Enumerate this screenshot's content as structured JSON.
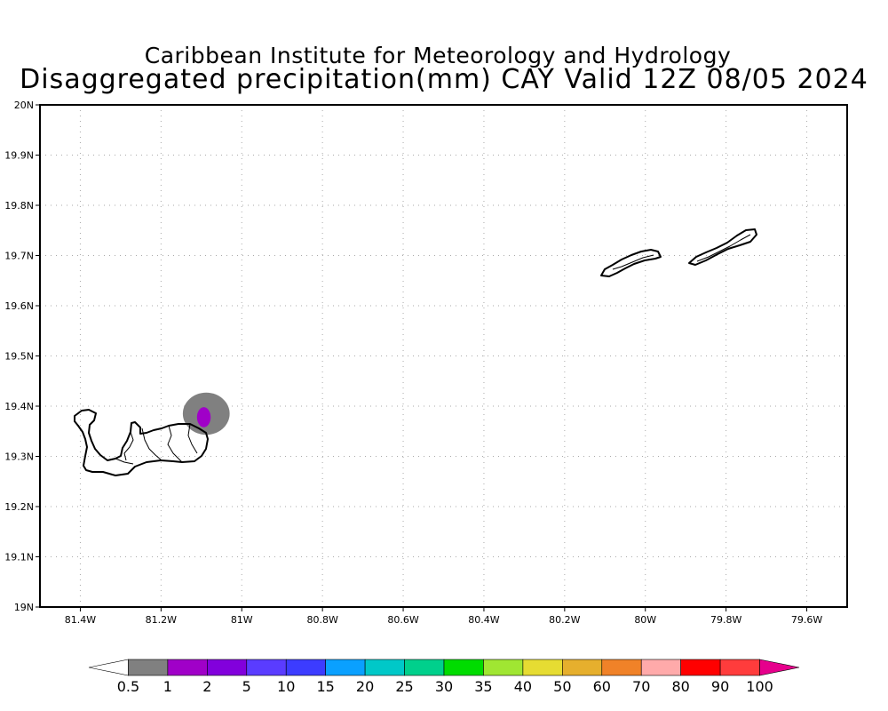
{
  "title_line1": "Caribbean Institute for Meteorology and Hydrology",
  "title_line2": "Disaggregated precipitation(mm) CAY Valid 12Z 08/05 2024",
  "map": {
    "lon_range": [
      -81.5,
      -79.5
    ],
    "lat_range": [
      19.0,
      20.0
    ],
    "grid": "dotted",
    "lon_ticks": [
      {
        "value": -81.4,
        "label": "81.4W"
      },
      {
        "value": -81.2,
        "label": "81.2W"
      },
      {
        "value": -81.0,
        "label": "81W"
      },
      {
        "value": -80.8,
        "label": "80.8W"
      },
      {
        "value": -80.6,
        "label": "80.6W"
      },
      {
        "value": -80.4,
        "label": "80.4W"
      },
      {
        "value": -80.2,
        "label": "80.2W"
      },
      {
        "value": -80.0,
        "label": "80W"
      },
      {
        "value": -79.8,
        "label": "79.8W"
      },
      {
        "value": -79.6,
        "label": "79.6W"
      }
    ],
    "lat_ticks": [
      {
        "value": 20.0,
        "label": "20N"
      },
      {
        "value": 19.9,
        "label": "19.9N"
      },
      {
        "value": 19.8,
        "label": "19.8N"
      },
      {
        "value": 19.7,
        "label": "19.7N"
      },
      {
        "value": 19.6,
        "label": "19.6N"
      },
      {
        "value": 19.5,
        "label": "19.5N"
      },
      {
        "value": 19.4,
        "label": "19.4N"
      },
      {
        "value": 19.3,
        "label": "19.3N"
      },
      {
        "value": 19.2,
        "label": "19.2N"
      },
      {
        "value": 19.1,
        "label": "19.1N"
      },
      {
        "value": 19.0,
        "label": "19N"
      }
    ],
    "precip_areas": [
      {
        "name": "precip-0.5-1mm-area",
        "color": "#808080",
        "center": [
          -81.088,
          19.385
        ],
        "radius_deg": [
          0.058,
          0.042
        ]
      },
      {
        "name": "precip-1-2mm-area",
        "color": "#a000c8",
        "center": [
          -81.094,
          19.378
        ],
        "radius_deg": [
          0.017,
          0.02
        ]
      }
    ]
  },
  "colorbar": {
    "colors": [
      "#ffffff",
      "#808080",
      "#a000c8",
      "#8200dc",
      "#5a3cff",
      "#3c3cff",
      "#0aa0ff",
      "#00c8c8",
      "#00d08c",
      "#00dc00",
      "#a0e632",
      "#e6dc32",
      "#e6af2d",
      "#f08228",
      "#ffaaaa",
      "#ff0000",
      "#ff3c3c",
      "#e6008c"
    ],
    "labels": [
      "0.5",
      "1",
      "2",
      "5",
      "10",
      "15",
      "20",
      "25",
      "30",
      "35",
      "40",
      "50",
      "60",
      "70",
      "80",
      "90",
      "100"
    ]
  }
}
